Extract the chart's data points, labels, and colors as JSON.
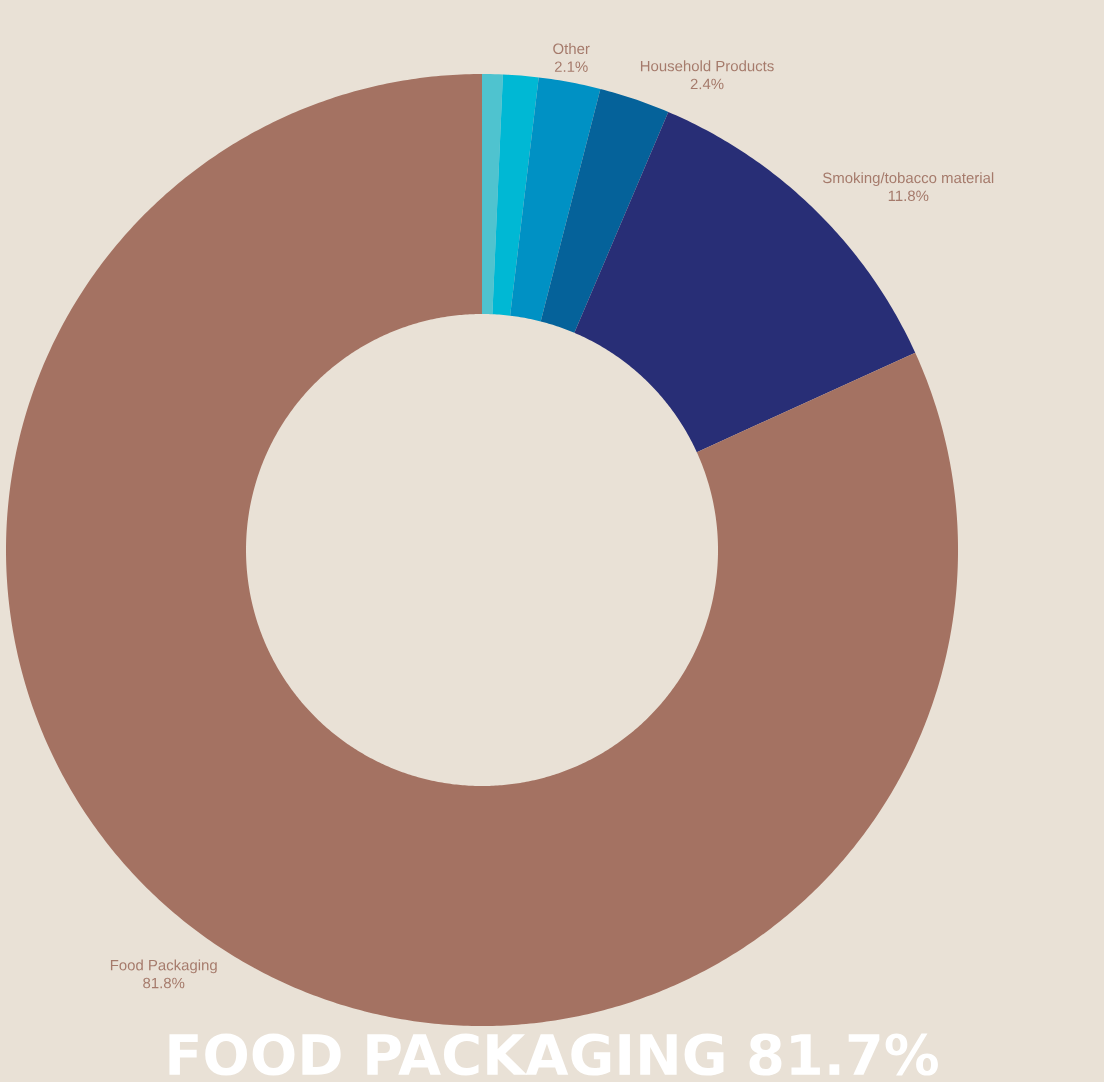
{
  "chart_data": {
    "type": "donut",
    "categories": [
      null,
      null,
      "Other",
      "Household Products",
      "Smoking/tobacco material",
      "Food Packaging"
    ],
    "values": [
      0.7,
      1.2,
      2.1,
      2.4,
      11.8,
      81.8
    ],
    "value_labels": [
      null,
      null,
      "2.1%",
      "2.4%",
      "11.8%",
      "81.8%"
    ],
    "colors": [
      "#4fc3cf",
      "#00b8d4",
      "#0091c4",
      "#05629a",
      "#282e76",
      "#a47262"
    ],
    "annotations": [
      "FOOD PACKAGING 81.7%"
    ]
  }
}
